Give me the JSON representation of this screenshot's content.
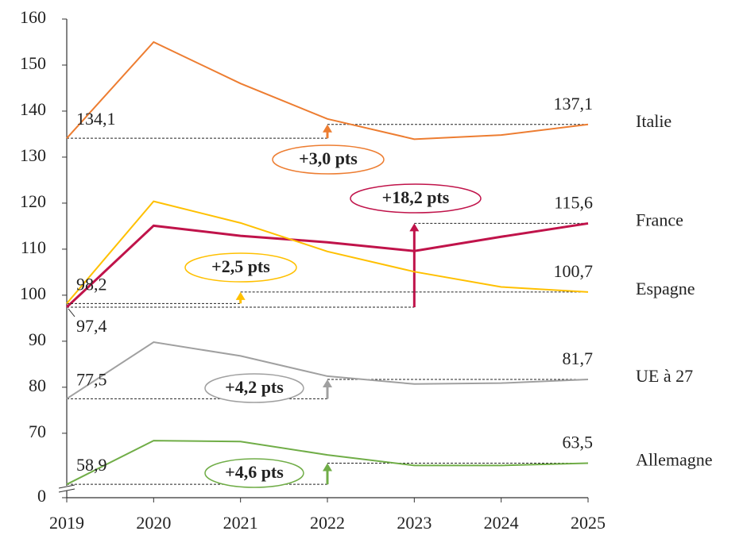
{
  "chart_data": {
    "type": "line",
    "categories": [
      "2019",
      "2020",
      "2021",
      "2022",
      "2023",
      "2024",
      "2025"
    ],
    "ylim": [
      56,
      160
    ],
    "yticks": [
      0,
      70,
      80,
      90,
      100,
      110,
      120,
      130,
      140,
      150,
      160
    ],
    "axis_break": true,
    "series": [
      {
        "name": "Italie",
        "color": "#ED7D31",
        "values": [
          134.1,
          155.0,
          146.0,
          138.3,
          133.9,
          134.8,
          137.1
        ],
        "value_labels": [
          "134,1",
          null,
          null,
          null,
          null,
          null,
          "137,1"
        ],
        "change": "+3,0 pts",
        "arrow_at": "2022"
      },
      {
        "name": "France",
        "color": "#C0134A",
        "values": [
          97.4,
          115.1,
          112.9,
          111.5,
          109.6,
          112.7,
          115.6
        ],
        "value_labels": [
          "97,4",
          null,
          null,
          null,
          null,
          null,
          "115,6"
        ],
        "change": "+18,2 pts",
        "arrow_at": "2023"
      },
      {
        "name": "Espagne",
        "color": "#FFC000",
        "values": [
          98.2,
          120.4,
          115.7,
          109.5,
          105.1,
          101.8,
          100.7
        ],
        "value_labels": [
          "98,2",
          null,
          null,
          null,
          null,
          null,
          "100,7"
        ],
        "change": "+2,5 pts",
        "arrow_at": "2021"
      },
      {
        "name": "UE à 27",
        "color": "#A0A0A0",
        "values": [
          77.5,
          89.8,
          86.8,
          82.4,
          80.7,
          80.9,
          81.7
        ],
        "value_labels": [
          "77,5",
          null,
          null,
          null,
          null,
          null,
          "81,7"
        ],
        "change": "+4,2 pts",
        "arrow_at": "2022"
      },
      {
        "name": "Allemagne",
        "color": "#70AD47",
        "values": [
          58.9,
          68.4,
          68.2,
          65.3,
          63.0,
          63.0,
          63.5
        ],
        "value_labels": [
          "58,9",
          null,
          null,
          null,
          null,
          null,
          "63,5"
        ],
        "change": "+4,6 pts",
        "arrow_at": "2022"
      }
    ]
  }
}
